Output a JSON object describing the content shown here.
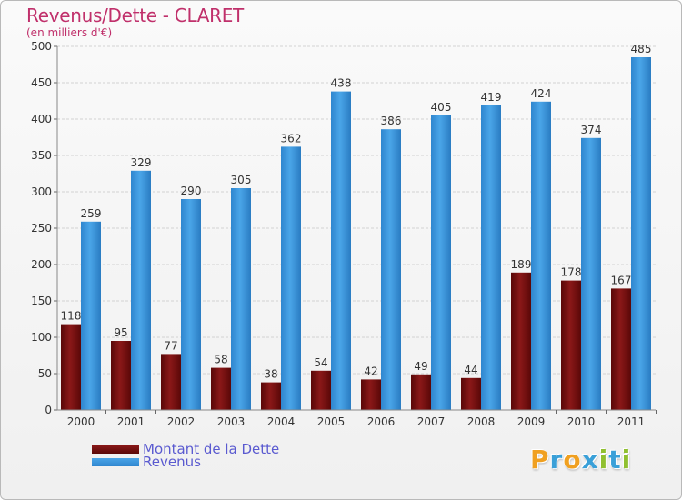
{
  "title": "Revenus/Dette - CLARET",
  "subtitle": "(en milliers d'€)",
  "chart_data": {
    "type": "bar",
    "title": "Revenus/Dette - CLARET",
    "ylabel": "(en milliers d'€)",
    "xlabel": "",
    "ylim": [
      0,
      500
    ],
    "yticks": [
      0,
      50,
      100,
      150,
      200,
      250,
      300,
      350,
      400,
      450,
      500
    ],
    "categories": [
      "2000",
      "2001",
      "2002",
      "2003",
      "2004",
      "2005",
      "2006",
      "2007",
      "2008",
      "2009",
      "2010",
      "2011"
    ],
    "series": [
      {
        "name": "Montant de la Dette",
        "color": "#7a1010",
        "values": [
          118,
          95,
          77,
          58,
          38,
          54,
          42,
          49,
          44,
          189,
          178,
          167
        ]
      },
      {
        "name": "Revenus",
        "color": "#3f97dc",
        "values": [
          259,
          329,
          290,
          305,
          362,
          438,
          386,
          405,
          419,
          424,
          374,
          485
        ]
      }
    ],
    "legend_position": "bottom-left",
    "grid": true
  },
  "logo": {
    "letters": [
      "P",
      "r",
      "o",
      "x",
      "i",
      "t",
      "i"
    ],
    "colors": [
      "#f0a020",
      "#3aa0d8",
      "#f0a020",
      "#3aa0d8",
      "#90c030",
      "#3aa0d8",
      "#90c030"
    ]
  }
}
